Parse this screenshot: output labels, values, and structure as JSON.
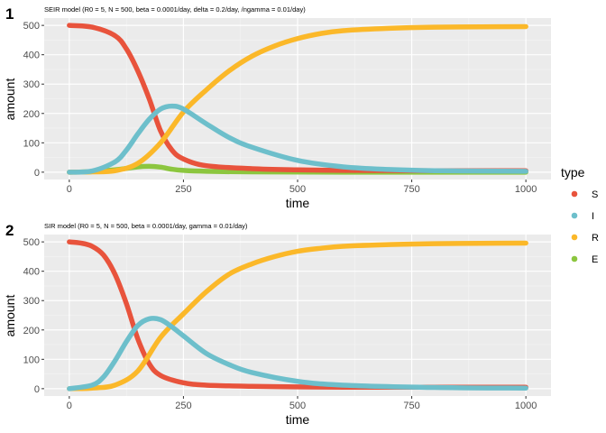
{
  "legend": {
    "title": "type",
    "entries": [
      {
        "label": "S",
        "color": "#e8533c"
      },
      {
        "label": "I",
        "color": "#6dbfcb"
      },
      {
        "label": "R",
        "color": "#fbb829"
      },
      {
        "label": "E",
        "color": "#8cc63f"
      }
    ]
  },
  "chart_data": [
    {
      "panel": "1",
      "type": "line",
      "title": "SEIR model (R0 = 5, N = 500, beta = 0.0001/day, delta = 0.2/day, /ngamma = 0.01/day)",
      "xlabel": "time",
      "ylabel": "amount",
      "xlim": [
        -55,
        1055
      ],
      "ylim": [
        -25,
        525
      ],
      "xticks": [
        0,
        250,
        500,
        750,
        1000
      ],
      "yticks": [
        0,
        100,
        200,
        300,
        400,
        500
      ],
      "grid": true,
      "series": [
        {
          "name": "S",
          "color": "#e8533c",
          "x": [
            0,
            50,
            100,
            125,
            150,
            175,
            200,
            225,
            250,
            300,
            400,
            500,
            600,
            800,
            1000
          ],
          "values": [
            500,
            494,
            465,
            420,
            345,
            250,
            140,
            75,
            45,
            22,
            12,
            8,
            6,
            5,
            5
          ]
        },
        {
          "name": "I",
          "color": "#6dbfcb",
          "x": [
            0,
            50,
            100,
            125,
            150,
            175,
            200,
            225,
            250,
            300,
            350,
            400,
            500,
            600,
            700,
            800,
            1000
          ],
          "values": [
            0,
            4,
            35,
            75,
            130,
            180,
            215,
            225,
            215,
            165,
            118,
            85,
            40,
            18,
            9,
            5,
            3
          ]
        },
        {
          "name": "R",
          "color": "#fbb829",
          "x": [
            0,
            50,
            100,
            150,
            200,
            250,
            300,
            350,
            400,
            450,
            500,
            550,
            600,
            700,
            800,
            900,
            1000
          ],
          "values": [
            0,
            1,
            5,
            30,
            100,
            205,
            280,
            345,
            395,
            430,
            455,
            472,
            482,
            490,
            494,
            495,
            496
          ]
        },
        {
          "name": "E",
          "color": "#8cc63f",
          "x": [
            0,
            50,
            100,
            150,
            175,
            200,
            225,
            250,
            300,
            400,
            600,
            800,
            1000
          ],
          "values": [
            0,
            2,
            8,
            18,
            20,
            17,
            10,
            6,
            3,
            1,
            0,
            0,
            0
          ]
        }
      ]
    },
    {
      "panel": "2",
      "type": "line",
      "title": "SIR model (R0 = 5, N = 500, beta = 0.0001/day, gamma = 0.01/day)",
      "xlabel": "time",
      "ylabel": "amount",
      "xlim": [
        -55,
        1055
      ],
      "ylim": [
        -25,
        525
      ],
      "xticks": [
        0,
        250,
        500,
        750,
        1000
      ],
      "yticks": [
        0,
        100,
        200,
        300,
        400,
        500
      ],
      "grid": true,
      "series": [
        {
          "name": "S",
          "color": "#e8533c",
          "x": [
            0,
            25,
            50,
            75,
            100,
            125,
            150,
            175,
            200,
            250,
            300,
            400,
            500,
            600,
            800,
            1000
          ],
          "values": [
            500,
            496,
            485,
            455,
            390,
            290,
            170,
            85,
            45,
            20,
            12,
            8,
            6,
            5,
            5,
            5
          ]
        },
        {
          "name": "I",
          "color": "#6dbfcb",
          "x": [
            0,
            50,
            75,
            100,
            125,
            150,
            175,
            200,
            225,
            250,
            300,
            350,
            400,
            500,
            600,
            800,
            1000
          ],
          "values": [
            0,
            12,
            40,
            95,
            160,
            215,
            238,
            235,
            210,
            180,
            120,
            82,
            55,
            25,
            12,
            4,
            2
          ]
        },
        {
          "name": "R",
          "color": "#fbb829",
          "x": [
            0,
            50,
            100,
            150,
            200,
            250,
            300,
            350,
            400,
            450,
            500,
            550,
            600,
            700,
            800,
            900,
            1000
          ],
          "values": [
            0,
            2,
            12,
            60,
            175,
            255,
            330,
            390,
            425,
            450,
            468,
            478,
            485,
            491,
            494,
            495,
            496
          ]
        }
      ]
    }
  ]
}
